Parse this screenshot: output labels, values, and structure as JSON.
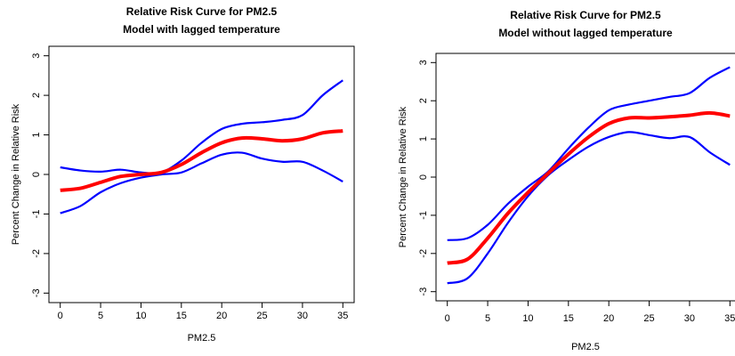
{
  "chart_data": [
    {
      "type": "line",
      "title": "Relative Risk Curve for PM2.5",
      "subtitle": "Model with lagged temperature",
      "x_label": "PM2.5",
      "y_label": "Percent Change in Relative Risk",
      "x": [
        0,
        2.5,
        5,
        7.5,
        10,
        12.5,
        15,
        17.5,
        20,
        22.5,
        25,
        27.5,
        30,
        32.5,
        35
      ],
      "series": [
        {
          "color": "#0000ff",
          "values": [
            0.18,
            0.1,
            0.07,
            0.12,
            0.05,
            0.05,
            0.35,
            0.8,
            1.15,
            1.28,
            1.32,
            1.38,
            1.5,
            2.0,
            2.38
          ]
        },
        {
          "color": "#0000ff",
          "values": [
            -0.98,
            -0.8,
            -0.45,
            -0.22,
            -0.08,
            0.0,
            0.05,
            0.28,
            0.5,
            0.55,
            0.4,
            0.32,
            0.32,
            0.1,
            -0.18
          ]
        },
        {
          "color": "#ff0000",
          "values": [
            -0.4,
            -0.35,
            -0.2,
            -0.05,
            0.0,
            0.05,
            0.25,
            0.55,
            0.8,
            0.92,
            0.9,
            0.85,
            0.9,
            1.05,
            1.1
          ]
        }
      ],
      "xlim": [
        -1.4,
        36.4
      ],
      "xticks": [
        0,
        5,
        10,
        15,
        20,
        25,
        30,
        35
      ],
      "ylim": [
        -3.24,
        3.24
      ],
      "yticks": [
        -3,
        -2,
        -1,
        0,
        1,
        2,
        3
      ]
    },
    {
      "type": "line",
      "title": "Relative Risk Curve for PM2.5",
      "subtitle": "Model without lagged temperature",
      "x_label": "PM2.5",
      "y_label": "Percent Change in Relative Risk",
      "x": [
        0,
        2.5,
        5,
        7.5,
        10,
        12.5,
        15,
        17.5,
        20,
        22.5,
        25,
        27.5,
        30,
        32.5,
        35
      ],
      "series": [
        {
          "color": "#0000ff",
          "values": [
            -1.65,
            -1.6,
            -1.25,
            -0.7,
            -0.25,
            0.15,
            0.75,
            1.3,
            1.75,
            1.9,
            2.0,
            2.1,
            2.2,
            2.6,
            2.88
          ]
        },
        {
          "color": "#0000ff",
          "values": [
            -2.78,
            -2.65,
            -2.0,
            -1.2,
            -0.5,
            0.05,
            0.45,
            0.8,
            1.05,
            1.18,
            1.1,
            1.02,
            1.05,
            0.65,
            0.32
          ]
        },
        {
          "color": "#ff0000",
          "values": [
            -2.25,
            -2.15,
            -1.6,
            -0.95,
            -0.4,
            0.1,
            0.6,
            1.05,
            1.4,
            1.55,
            1.55,
            1.58,
            1.62,
            1.68,
            1.6
          ]
        }
      ],
      "xlim": [
        -1.4,
        36.4
      ],
      "xticks": [
        0,
        5,
        10,
        15,
        20,
        25,
        30,
        35
      ],
      "ylim": [
        -3.24,
        3.24
      ],
      "yticks": [
        -3,
        -2,
        -1,
        0,
        1,
        2,
        3
      ]
    }
  ]
}
